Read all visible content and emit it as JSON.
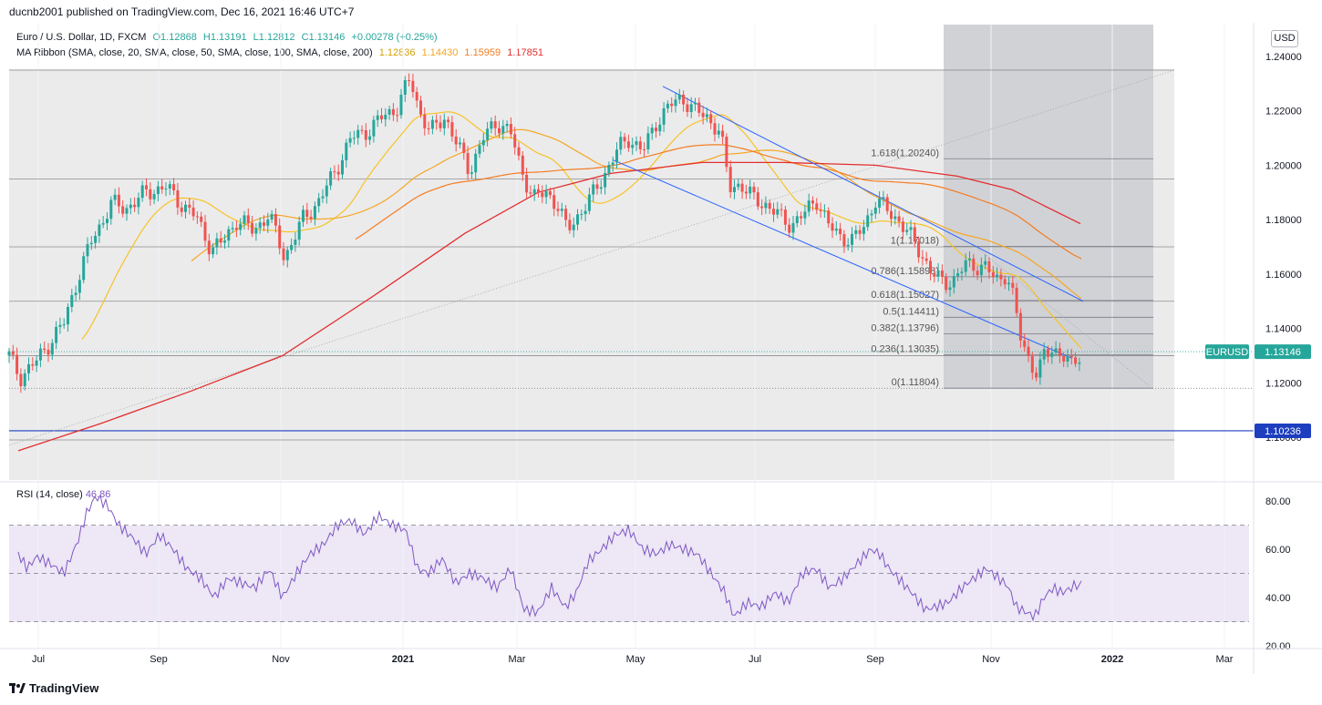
{
  "header": {
    "publisher_line": "ducnb2001 published on TradingView.com, Dec 16, 2021 16:46 UTC+7"
  },
  "legend": {
    "symbol": "Euro / U.S. Dollar, 1D, FXCM",
    "open": "O1.12868",
    "high": "H1.13191",
    "low": "L1.12812",
    "close": "C1.13146",
    "change": "+0.00278 (+0.25%)",
    "ma_label": "MA Ribbon (SMA, close, 20, SMA, close, 50, SMA, close, 100, SMA, close, 200)",
    "ma_values": [
      "1.12836",
      "1.14430",
      "1.15959",
      "1.17851"
    ]
  },
  "currency_button": "USD",
  "rsi_legend": {
    "label": "RSI (14, close)",
    "value": "46.86"
  },
  "brand": "TradingView",
  "colors": {
    "up": "#26a69a",
    "down": "#ef5350",
    "ma20": "#f7c325",
    "ma50": "#f5a623",
    "ma100": "#f57c20",
    "ma200": "#e22f2f",
    "channel": "#2962ff",
    "rsi": "#7e57c2",
    "rsi_band": "#ede7f6",
    "price_tag": "#26a69a",
    "line_tag": "#1d3fbf"
  },
  "chart_data": [
    {
      "type": "candlestick",
      "title": "Euro / U.S. Dollar, 1D, FXCM",
      "x_ticks": [
        "Jul",
        "Sep",
        "Nov",
        "2021",
        "Mar",
        "May",
        "Jul",
        "Sep",
        "Nov",
        "2022",
        "Mar"
      ],
      "y_ticks": [
        "1.24000",
        "1.22000",
        "1.20000",
        "1.18000",
        "1.16000",
        "1.14000",
        "1.12000",
        "1.10000"
      ],
      "ylim": [
        1.09,
        1.245
      ],
      "last_price": "1.13146",
      "price_tag_label": "EURUSD",
      "horizontal_line": "1.10236",
      "close_path": [
        [
          0,
          1.13
        ],
        [
          12,
          1.122
        ],
        [
          30,
          1.128
        ],
        [
          60,
          1.142
        ],
        [
          75,
          1.158
        ],
        [
          90,
          1.172
        ],
        [
          100,
          1.178
        ],
        [
          112,
          1.186
        ],
        [
          128,
          1.184
        ],
        [
          150,
          1.19
        ],
        [
          172,
          1.192
        ],
        [
          188,
          1.186
        ],
        [
          205,
          1.181
        ],
        [
          222,
          1.169
        ],
        [
          235,
          1.172
        ],
        [
          250,
          1.18
        ],
        [
          268,
          1.176
        ],
        [
          285,
          1.182
        ],
        [
          302,
          1.166
        ],
        [
          322,
          1.18
        ],
        [
          340,
          1.187
        ],
        [
          358,
          1.198
        ],
        [
          375,
          1.21
        ],
        [
          395,
          1.213
        ],
        [
          410,
          1.218
        ],
        [
          425,
          1.221
        ],
        [
          440,
          1.232
        ],
        [
          450,
          1.22
        ],
        [
          462,
          1.212
        ],
        [
          478,
          1.218
        ],
        [
          492,
          1.207
        ],
        [
          505,
          1.198
        ],
        [
          520,
          1.21
        ],
        [
          535,
          1.216
        ],
        [
          550,
          1.212
        ],
        [
          562,
          1.198
        ],
        [
          575,
          1.188
        ],
        [
          590,
          1.19
        ],
        [
          602,
          1.185
        ],
        [
          612,
          1.176
        ],
        [
          625,
          1.182
        ],
        [
          640,
          1.189
        ],
        [
          655,
          1.198
        ],
        [
          668,
          1.206
        ],
        [
          680,
          1.21
        ],
        [
          695,
          1.205
        ],
        [
          710,
          1.216
        ],
        [
          725,
          1.222
        ],
        [
          738,
          1.225
        ],
        [
          752,
          1.22
        ],
        [
          765,
          1.218
        ],
        [
          780,
          1.212
        ],
        [
          790,
          1.192
        ],
        [
          802,
          1.193
        ],
        [
          815,
          1.188
        ],
        [
          828,
          1.186
        ],
        [
          842,
          1.182
        ],
        [
          858,
          1.178
        ],
        [
          872,
          1.182
        ],
        [
          885,
          1.188
        ],
        [
          898,
          1.178
        ],
        [
          912,
          1.174
        ],
        [
          925,
          1.172
        ],
        [
          938,
          1.178
        ],
        [
          950,
          1.187
        ],
        [
          962,
          1.184
        ],
        [
          975,
          1.18
        ],
        [
          988,
          1.174
        ],
        [
          1000,
          1.168
        ],
        [
          1012,
          1.16
        ],
        [
          1025,
          1.157
        ],
        [
          1038,
          1.158
        ],
        [
          1050,
          1.164
        ],
        [
          1062,
          1.163
        ],
        [
          1072,
          1.162
        ],
        [
          1082,
          1.158
        ],
        [
          1094,
          1.16
        ],
        [
          1102,
          1.15
        ],
        [
          1110,
          1.136
        ],
        [
          1120,
          1.128
        ],
        [
          1128,
          1.122
        ],
        [
          1135,
          1.13
        ],
        [
          1145,
          1.133
        ],
        [
          1155,
          1.13
        ],
        [
          1165,
          1.126
        ],
        [
          1176,
          1.13146
        ]
      ],
      "series": [
        {
          "name": "SMA 20",
          "value": "1.12836"
        },
        {
          "name": "SMA 50",
          "value": "1.14430"
        },
        {
          "name": "SMA 100",
          "value": "1.15959"
        },
        {
          "name": "SMA 200",
          "value": "1.17851"
        }
      ],
      "fibonacci": [
        {
          "label": "1.618(1.20240)",
          "value": 1.2024
        },
        {
          "label": "1(1.17018)",
          "value": 1.17018
        },
        {
          "label": "0.786(1.15898)",
          "value": 1.15898
        },
        {
          "label": "0.618(1.15027)",
          "value": 1.15027
        },
        {
          "label": "0.5(1.14411)",
          "value": 1.14411
        },
        {
          "label": "0.382(1.13796)",
          "value": 1.13796
        },
        {
          "label": "0.236(1.13035)",
          "value": 1.13035
        },
        {
          "label": "0(1.11804)",
          "value": 1.11804
        }
      ],
      "sma200_path": [
        [
          10,
          1.095
        ],
        [
          100,
          1.105
        ],
        [
          200,
          1.117
        ],
        [
          300,
          1.13
        ],
        [
          400,
          1.152
        ],
        [
          500,
          1.175
        ],
        [
          580,
          1.19
        ],
        [
          660,
          1.197
        ],
        [
          760,
          1.201
        ],
        [
          850,
          1.201
        ],
        [
          950,
          1.2
        ],
        [
          1040,
          1.196
        ],
        [
          1100,
          1.191
        ],
        [
          1175,
          1.1785
        ]
      ]
    },
    {
      "type": "line",
      "title": "RSI (14, close)",
      "y_ticks": [
        "80.00",
        "60.00",
        "40.00",
        "20.00"
      ],
      "ylim": [
        20,
        85
      ],
      "bands": [
        30,
        50,
        70
      ],
      "last_value": "46.86",
      "values": [
        [
          10,
          58
        ],
        [
          20,
          52
        ],
        [
          30,
          57
        ],
        [
          45,
          54
        ],
        [
          60,
          50
        ],
        [
          75,
          63
        ],
        [
          85,
          75
        ],
        [
          95,
          82
        ],
        [
          108,
          78
        ],
        [
          120,
          70
        ],
        [
          135,
          65
        ],
        [
          150,
          58
        ],
        [
          165,
          66
        ],
        [
          180,
          60
        ],
        [
          195,
          52
        ],
        [
          210,
          48
        ],
        [
          225,
          40
        ],
        [
          240,
          48
        ],
        [
          255,
          46
        ],
        [
          270,
          44
        ],
        [
          285,
          52
        ],
        [
          300,
          40
        ],
        [
          315,
          50
        ],
        [
          330,
          58
        ],
        [
          345,
          62
        ],
        [
          360,
          70
        ],
        [
          375,
          72
        ],
        [
          390,
          66
        ],
        [
          405,
          74
        ],
        [
          420,
          70
        ],
        [
          435,
          68
        ],
        [
          448,
          52
        ],
        [
          460,
          50
        ],
        [
          475,
          56
        ],
        [
          490,
          46
        ],
        [
          505,
          50
        ],
        [
          520,
          48
        ],
        [
          535,
          44
        ],
        [
          550,
          52
        ],
        [
          565,
          35
        ],
        [
          580,
          34
        ],
        [
          595,
          44
        ],
        [
          610,
          36
        ],
        [
          622,
          42
        ],
        [
          635,
          55
        ],
        [
          650,
          60
        ],
        [
          665,
          66
        ],
        [
          680,
          68
        ],
        [
          695,
          60
        ],
        [
          710,
          58
        ],
        [
          725,
          62
        ],
        [
          740,
          60
        ],
        [
          755,
          58
        ],
        [
          770,
          50
        ],
        [
          785,
          42
        ],
        [
          795,
          32
        ],
        [
          810,
          38
        ],
        [
          825,
          36
        ],
        [
          840,
          42
        ],
        [
          855,
          38
        ],
        [
          870,
          50
        ],
        [
          885,
          52
        ],
        [
          900,
          44
        ],
        [
          915,
          48
        ],
        [
          930,
          54
        ],
        [
          945,
          60
        ],
        [
          955,
          58
        ],
        [
          965,
          52
        ],
        [
          975,
          48
        ],
        [
          990,
          42
        ],
        [
          1005,
          35
        ],
        [
          1015,
          36
        ],
        [
          1030,
          38
        ],
        [
          1045,
          44
        ],
        [
          1058,
          48
        ],
        [
          1072,
          52
        ],
        [
          1085,
          48
        ],
        [
          1095,
          45
        ],
        [
          1105,
          36
        ],
        [
          1115,
          34
        ],
        [
          1125,
          32
        ],
        [
          1135,
          40
        ],
        [
          1145,
          44
        ],
        [
          1155,
          42
        ],
        [
          1165,
          44
        ],
        [
          1176,
          46.86
        ]
      ]
    }
  ]
}
